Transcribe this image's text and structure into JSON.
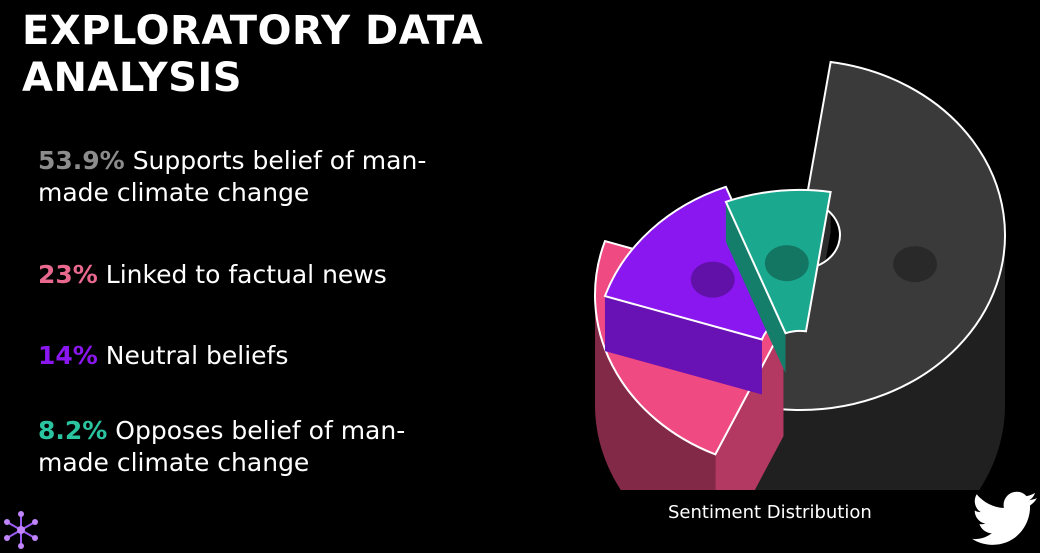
{
  "slide": {
    "title": "EXPLORATORY DATA ANALYSIS"
  },
  "stats": [
    {
      "pct": "53.9%",
      "text": "Supports belief of man-made climate change",
      "color": "#8c8c8c"
    },
    {
      "pct": "23%",
      "text": "Linked to factual news",
      "color": "#e8688e"
    },
    {
      "pct": "14%",
      "text": "Neutral beliefs",
      "color": "#8a17f0"
    },
    {
      "pct": "8.2%",
      "text": "Opposes belief of man-made climate change",
      "color": "#2bc4a0"
    }
  ],
  "chart_data": {
    "type": "pie",
    "style": "3d-puzzle",
    "title": "Sentiment Distribution",
    "categories": [
      "Supports belief of man-made climate change",
      "Linked to factual news",
      "Neutral beliefs",
      "Opposes belief of man-made climate change"
    ],
    "values": [
      53.9,
      23,
      14,
      8.2
    ],
    "colors": [
      "#3a3a3a",
      "#ef4a82",
      "#8a17f0",
      "#1aa88e"
    ]
  },
  "icons": {
    "logo": "network-icon",
    "brand": "twitter-bird-icon"
  }
}
